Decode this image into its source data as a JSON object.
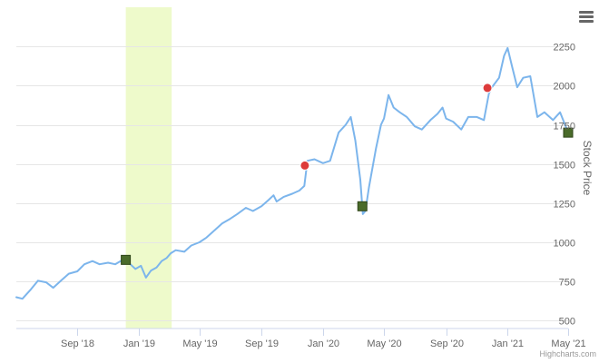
{
  "chart_data": {
    "type": "line",
    "title": "",
    "xlabel": "",
    "ylabel": "Stock Price",
    "ylim": [
      450,
      2500
    ],
    "y_ticks": [
      500,
      750,
      1000,
      1250,
      1500,
      1750,
      2000,
      2250
    ],
    "y_tick_labels": [
      "500",
      "750",
      "1000",
      "1250",
      "1500",
      "1750",
      "2000",
      "2250"
    ],
    "x_range": [
      "2018-05-03",
      "2021-05-01"
    ],
    "x_ticks": [
      {
        "date": "2018-09-01",
        "label": "Sep '18"
      },
      {
        "date": "2019-01-01",
        "label": "Jan '19"
      },
      {
        "date": "2019-05-01",
        "label": "May '19"
      },
      {
        "date": "2019-09-01",
        "label": "Sep '19"
      },
      {
        "date": "2020-01-01",
        "label": "Jan '20"
      },
      {
        "date": "2020-05-01",
        "label": "May '20"
      },
      {
        "date": "2020-09-01",
        "label": "Sep '20"
      },
      {
        "date": "2021-01-01",
        "label": "Jan '21"
      },
      {
        "date": "2021-05-01",
        "label": "May '21"
      }
    ],
    "plot_band": {
      "from": "2018-12-06",
      "to": "2019-03-07",
      "color": "#EEFACB"
    },
    "grid": true,
    "y_axis_side": "right",
    "series": [
      {
        "color": "#7CB5EC",
        "points": [
          [
            "2018-05-03",
            650
          ],
          [
            "2018-05-15",
            640
          ],
          [
            "2018-06-01",
            700
          ],
          [
            "2018-06-15",
            755
          ],
          [
            "2018-07-01",
            745
          ],
          [
            "2018-07-15",
            710
          ],
          [
            "2018-08-01",
            760
          ],
          [
            "2018-08-15",
            800
          ],
          [
            "2018-09-01",
            815
          ],
          [
            "2018-09-15",
            860
          ],
          [
            "2018-10-01",
            880
          ],
          [
            "2018-10-15",
            860
          ],
          [
            "2018-11-01",
            870
          ],
          [
            "2018-11-15",
            860
          ],
          [
            "2018-12-01",
            890
          ],
          [
            "2018-12-15",
            860
          ],
          [
            "2018-12-25",
            830
          ],
          [
            "2019-01-05",
            850
          ],
          [
            "2019-01-15",
            775
          ],
          [
            "2019-01-25",
            820
          ],
          [
            "2019-02-05",
            840
          ],
          [
            "2019-02-15",
            880
          ],
          [
            "2019-02-25",
            900
          ],
          [
            "2019-03-05",
            930
          ],
          [
            "2019-03-15",
            950
          ],
          [
            "2019-04-01",
            940
          ],
          [
            "2019-04-15",
            980
          ],
          [
            "2019-05-01",
            1000
          ],
          [
            "2019-05-15",
            1030
          ],
          [
            "2019-06-01",
            1080
          ],
          [
            "2019-06-15",
            1120
          ],
          [
            "2019-07-01",
            1150
          ],
          [
            "2019-07-15",
            1180
          ],
          [
            "2019-08-01",
            1220
          ],
          [
            "2019-08-15",
            1200
          ],
          [
            "2019-09-01",
            1230
          ],
          [
            "2019-09-15",
            1270
          ],
          [
            "2019-09-25",
            1300
          ],
          [
            "2019-10-01",
            1260
          ],
          [
            "2019-10-15",
            1290
          ],
          [
            "2019-11-01",
            1310
          ],
          [
            "2019-11-15",
            1330
          ],
          [
            "2019-11-25",
            1360
          ],
          [
            "2019-12-01",
            1520
          ],
          [
            "2019-12-15",
            1530
          ],
          [
            "2020-01-01",
            1505
          ],
          [
            "2020-01-15",
            1520
          ],
          [
            "2020-02-01",
            1700
          ],
          [
            "2020-02-15",
            1750
          ],
          [
            "2020-02-25",
            1800
          ],
          [
            "2020-03-05",
            1650
          ],
          [
            "2020-03-15",
            1400
          ],
          [
            "2020-03-20",
            1180
          ],
          [
            "2020-03-25",
            1200
          ],
          [
            "2020-04-01",
            1350
          ],
          [
            "2020-04-15",
            1600
          ],
          [
            "2020-04-25",
            1750
          ],
          [
            "2020-05-01",
            1790
          ],
          [
            "2020-05-10",
            1940
          ],
          [
            "2020-05-20",
            1860
          ],
          [
            "2020-06-01",
            1830
          ],
          [
            "2020-06-15",
            1800
          ],
          [
            "2020-07-01",
            1740
          ],
          [
            "2020-07-15",
            1720
          ],
          [
            "2020-08-01",
            1780
          ],
          [
            "2020-08-15",
            1820
          ],
          [
            "2020-08-25",
            1860
          ],
          [
            "2020-09-01",
            1790
          ],
          [
            "2020-09-15",
            1770
          ],
          [
            "2020-10-01",
            1720
          ],
          [
            "2020-10-15",
            1800
          ],
          [
            "2020-11-01",
            1800
          ],
          [
            "2020-11-15",
            1780
          ],
          [
            "2020-11-25",
            1950
          ],
          [
            "2020-12-01",
            1990
          ],
          [
            "2020-12-15",
            2050
          ],
          [
            "2020-12-25",
            2190
          ],
          [
            "2021-01-01",
            2240
          ],
          [
            "2021-01-10",
            2120
          ],
          [
            "2021-01-20",
            1990
          ],
          [
            "2021-02-01",
            2050
          ],
          [
            "2021-02-15",
            2060
          ],
          [
            "2021-03-01",
            1800
          ],
          [
            "2021-03-15",
            1830
          ],
          [
            "2021-04-01",
            1780
          ],
          [
            "2021-04-15",
            1830
          ],
          [
            "2021-05-01",
            1700
          ]
        ]
      }
    ],
    "markers": [
      {
        "kind": "circle",
        "color": "#DD3B3B",
        "date": "2019-11-26",
        "value": 1490
      },
      {
        "kind": "circle",
        "color": "#DD3B3B",
        "date": "2020-11-22",
        "value": 1985
      },
      {
        "kind": "square",
        "color": "#4A6B2A",
        "date": "2018-12-06",
        "value": 888
      },
      {
        "kind": "square",
        "color": "#4A6B2A",
        "date": "2020-03-19",
        "value": 1230
      },
      {
        "kind": "square",
        "color": "#4A6B2A",
        "date": "2021-05-01",
        "value": 1700
      }
    ]
  },
  "menu": {
    "icon": "hamburger-menu-icon"
  },
  "credit": {
    "text": "Highcharts.com"
  }
}
